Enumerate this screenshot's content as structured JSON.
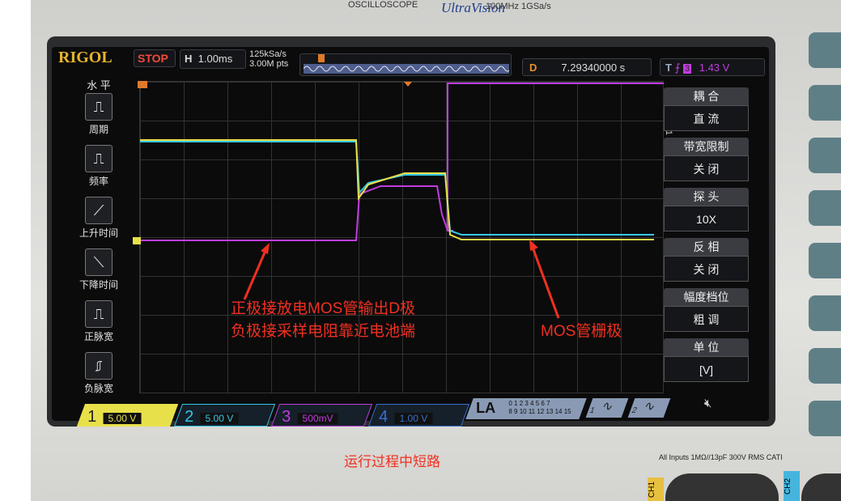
{
  "device": {
    "brand_top": "OSCILLOSCOPE",
    "series": "UltraVision",
    "spec": "100MHz  1GSa/s",
    "logo": "RIGOL",
    "inputs_label": "All Inputs 1MΩ//13pF 300V RMS  CATI",
    "ch1_label": "CH1",
    "ch2_label": "CH2"
  },
  "header": {
    "run_state": "STOP",
    "timebase_label": "H",
    "timebase": "1.00ms",
    "sample_rate": "125kSa/s",
    "memory_depth": "3.00M pts",
    "delay_label": "D",
    "delay": "7.29340000 s",
    "trigger_label": "T",
    "trigger_source": "3",
    "trigger_level": "1.43 V"
  },
  "left_menu": {
    "title": "水 平",
    "items": [
      {
        "label": "周期",
        "icon": "period-icon"
      },
      {
        "label": "频率",
        "icon": "frequency-icon"
      },
      {
        "label": "上升时间",
        "icon": "rise-time-icon"
      },
      {
        "label": "下降时间",
        "icon": "fall-time-icon"
      },
      {
        "label": "正脉宽",
        "icon": "positive-width-icon"
      },
      {
        "label": "负脉宽",
        "icon": "negative-width-icon"
      }
    ]
  },
  "right_menu": {
    "channel": "CH1",
    "items": [
      {
        "title": "耦 合",
        "value": "直 流"
      },
      {
        "title": "带宽限制",
        "value": "关 闭"
      },
      {
        "title": "探 头",
        "value": "10X"
      },
      {
        "title": "反 相",
        "value": "关 闭"
      },
      {
        "title": "幅度档位",
        "value": "粗 调"
      },
      {
        "title": "单 位",
        "value": "[V]"
      }
    ]
  },
  "channels": [
    {
      "num": "1",
      "scale": "5.00 V",
      "color": "#e8e04a"
    },
    {
      "num": "2",
      "scale": "5.00 V",
      "color": "#35c8e6"
    },
    {
      "num": "3",
      "scale": "500mV",
      "color": "#c03ce0"
    },
    {
      "num": "4",
      "scale": "1.00 V",
      "color": "#3a6fd0"
    }
  ],
  "la": {
    "label": "LA",
    "bits_top": "0 1 2 3  4 5 6 7",
    "bits_bottom": "8 9 10 11 12 13 14 15"
  },
  "gen": [
    "1",
    "2"
  ],
  "annotations": {
    "line1": "正极接放电MOS管输出D极",
    "line2": "负极接采样电阻靠近电池端",
    "gate": "MOS管栅极",
    "caption": "运行过程中短路",
    "color": "#f03020"
  }
}
